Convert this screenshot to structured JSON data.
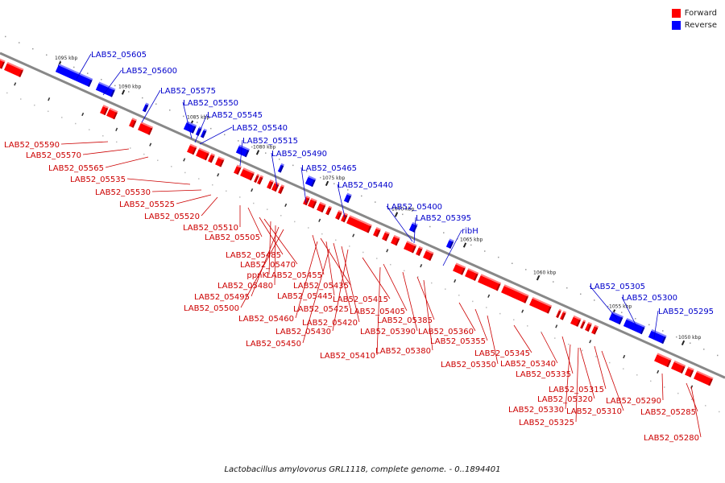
{
  "caption": "Lactobacillus amylovorus GRL1118, complete genome. - 0..1894401",
  "legend": [
    {
      "label": "Forward",
      "color": "#ff0000"
    },
    {
      "label": "Reverse",
      "color": "#0000ff"
    }
  ],
  "colors": {
    "forward": "#ff0000",
    "reverse": "#0000ff",
    "forward_label": "#cc0000",
    "reverse_label": "#0000cc",
    "backbone": "#888888"
  },
  "ticks": [
    "1095 kbp",
    "1090 kbp",
    "1085 kbp",
    "1080 kbp",
    "1075 kbp",
    "1070 kbp",
    "1065 kbp",
    "1060 kbp",
    "1055 kbp",
    "1050 kbp"
  ],
  "reverse_genes": [
    "LAB52_05605",
    "LAB52_05600",
    "LAB52_05575",
    "LAB52_05550",
    "LAB52_05545",
    "LAB52_05540",
    "LAB52_05515",
    "LAB52_05490",
    "LAB52_05465",
    "LAB52_05440",
    "LAB52_05400",
    "LAB52_05395",
    "ribH",
    "LAB52_05305",
    "LAB52_05300",
    "LAB52_05295"
  ],
  "forward_genes": [
    "LAB52_05590",
    "LAB52_05570",
    "LAB52_05565",
    "LAB52_05535",
    "LAB52_05530",
    "LAB52_05525",
    "LAB52_05520",
    "LAB52_05510",
    "LAB52_05505",
    "LAB52_05485",
    "LAB52_05470",
    "ppnK",
    "LAB52_05480",
    "LAB52_05495",
    "LAB52_05500",
    "LAB52_05455",
    "LAB52_05435",
    "LAB52_05445",
    "LAB52_05425",
    "LAB52_05460",
    "LAB52_05420",
    "LAB52_05430",
    "LAB52_05450",
    "LAB52_05415",
    "LAB52_05405",
    "LAB52_05410",
    "LAB52_05385",
    "LAB52_05390",
    "LAB52_05380",
    "LAB52_05360",
    "LAB52_05355",
    "LAB52_05350",
    "LAB52_05345",
    "LAB52_05340",
    "LAB52_05335",
    "LAB52_05315",
    "LAB52_05320",
    "LAB52_05330",
    "LAB52_05325",
    "LAB52_05310",
    "LAB52_05290",
    "LAB52_05285",
    "LAB52_05280"
  ]
}
